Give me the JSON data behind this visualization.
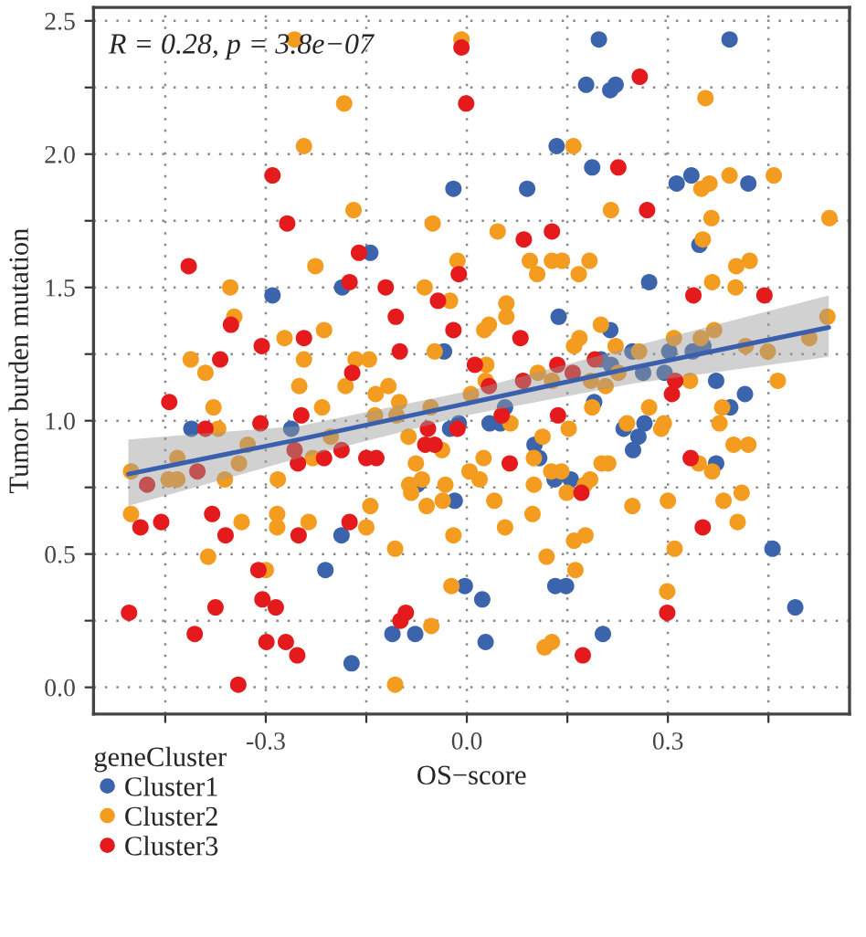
{
  "chart_data": {
    "type": "scatter",
    "xlabel": "OS−score",
    "ylabel": "Tumor burden mutation",
    "legend_title": "geneCluster",
    "legend": "bottom left",
    "grid": true,
    "annotations": [
      "R = 0.28, p = 3.8e−07"
    ],
    "xlim": [
      -0.557,
      0.571
    ],
    "ylim": [
      -0.1,
      2.55
    ],
    "xticks": [
      {
        "value": -0.45,
        "label": null
      },
      -0.3,
      {
        "value": -0.15,
        "label": null
      },
      {
        "value": 0,
        "label": "0.0"
      },
      {
        "value": 0.15,
        "label": null
      },
      0.3,
      {
        "value": 0.45,
        "label": null
      }
    ],
    "yticks": [
      {
        "value": 0,
        "label": "0.0"
      },
      {
        "value": 0.25,
        "label": null
      },
      0.5,
      {
        "value": 0.75,
        "label": null
      },
      {
        "value": 1,
        "label": "1.0"
      },
      {
        "value": 1.25,
        "label": null
      },
      1.5,
      {
        "value": 1.75,
        "label": null
      },
      {
        "value": 2,
        "label": "2.0"
      },
      {
        "value": 2.25,
        "label": null
      },
      2.5
    ],
    "series": [
      {
        "name": "Cluster1",
        "color": "#3b64ad",
        "marker": "circle",
        "x": [
          -0.29,
          -0.02,
          -0.144,
          -0.186,
          -0.034,
          0.197,
          0.392,
          0.178,
          0.214,
          0.222,
          0.134,
          0.187,
          0.09,
          0.313,
          0.335,
          0.42,
          0.347,
          0.272,
          0.137,
          0.214,
          0.247,
          0.302,
          0.337,
          0.353,
          0.2,
          -0.411,
          -0.262,
          -0.025,
          -0.012,
          -0.074,
          -0.018,
          -0.187,
          -0.211,
          -0.003,
          -0.111,
          -0.077,
          -0.172,
          0.215,
          0.263,
          0.295,
          0.372,
          0.415,
          0.19,
          0.393,
          0.057,
          0.034,
          0.05,
          0.265,
          0.234,
          0.256,
          0.101,
          0.248,
          0.108,
          0.372,
          0.131,
          0.155,
          0.456,
          0.132,
          0.148,
          0.023,
          0.49,
          0.203,
          0.028
        ],
        "values": [
          1.47,
          1.87,
          1.63,
          1.5,
          1.26,
          2.43,
          2.43,
          2.26,
          2.24,
          2.26,
          2.03,
          1.95,
          1.87,
          1.89,
          1.92,
          1.89,
          1.66,
          1.52,
          1.39,
          1.34,
          1.26,
          1.26,
          1.26,
          1.28,
          1.23,
          0.97,
          0.97,
          0.97,
          0.99,
          0.76,
          0.7,
          0.57,
          0.44,
          0.38,
          0.2,
          0.2,
          0.09,
          1.21,
          1.18,
          1.18,
          1.15,
          1.1,
          1.07,
          1.05,
          1.05,
          0.99,
          0.99,
          0.99,
          0.97,
          0.94,
          0.91,
          0.89,
          0.86,
          0.84,
          0.78,
          0.78,
          0.52,
          0.38,
          0.38,
          0.33,
          0.3,
          0.2,
          0.17
        ]
      },
      {
        "name": "Cluster2",
        "color": "#f39c1f",
        "marker": "circle",
        "x": [
          -0.257,
          -0.008,
          -0.183,
          -0.243,
          -0.169,
          -0.051,
          -0.014,
          -0.226,
          -0.353,
          -0.063,
          -0.025,
          -0.347,
          -0.213,
          -0.272,
          -0.412,
          -0.243,
          -0.166,
          -0.146,
          -0.048,
          0.356,
          0.159,
          0.35,
          0.362,
          0.392,
          0.458,
          0.215,
          0.365,
          0.541,
          0.046,
          0.352,
          0.094,
          0.127,
          0.142,
          0.183,
          0.105,
          0.167,
          0.402,
          0.422,
          0.366,
          0.401,
          0.059,
          0.059,
          0.033,
          0.026,
          0.2,
          0.538,
          0.168,
          0.16,
          0.222,
          0.309,
          0.349,
          0.369,
          0.511,
          0.257,
          0.416,
          0.449,
          0.029,
          -0.39,
          -0.25,
          -0.181,
          -0.136,
          -0.117,
          -0.101,
          -0.378,
          -0.216,
          -0.137,
          -0.105,
          -0.054,
          -0.371,
          -0.087,
          -0.203,
          -0.327,
          -0.432,
          -0.037,
          -0.23,
          -0.34,
          -0.076,
          -0.501,
          -0.445,
          -0.432,
          -0.361,
          -0.282,
          -0.067,
          0.004,
          -0.086,
          -0.032,
          -0.083,
          -0.144,
          -0.06,
          -0.036,
          -0.501,
          -0.336,
          -0.283,
          -0.283,
          -0.236,
          -0.15,
          -0.02,
          -0.107,
          -0.386,
          -0.3,
          -0.023,
          -0.053,
          -0.107,
          0.028,
          0.106,
          0.127,
          0.185,
          0.207,
          0.226,
          0.333,
          0.464,
          0.006,
          0.187,
          0.272,
          0.381,
          0.065,
          0.239,
          0.294,
          0.29,
          0.377,
          0.152,
          0.113,
          0.398,
          0.42,
          0.025,
          0.1,
          0.201,
          0.211,
          0.346,
          0.019,
          0.126,
          0.141,
          0.366,
          0.184,
          0.1,
          0.176,
          0.149,
          0.41,
          0.041,
          0.3,
          0.383,
          0.247,
          0.098,
          0.404,
          0.057,
          0.177,
          0.16,
          0.31,
          0.119,
          0.162,
          0.299,
          0.127,
          0.116
        ],
        "values": [
          2.43,
          2.43,
          2.19,
          2.03,
          1.79,
          1.74,
          1.6,
          1.58,
          1.5,
          1.5,
          1.45,
          1.39,
          1.34,
          1.31,
          1.23,
          1.23,
          1.23,
          1.23,
          1.26,
          2.21,
          2.03,
          1.87,
          1.89,
          1.92,
          1.92,
          1.79,
          1.76,
          1.76,
          1.71,
          1.68,
          1.6,
          1.6,
          1.6,
          1.6,
          1.55,
          1.55,
          1.58,
          1.6,
          1.52,
          1.5,
          1.44,
          1.39,
          1.36,
          1.34,
          1.36,
          1.39,
          1.31,
          1.28,
          1.28,
          1.31,
          1.31,
          1.34,
          1.31,
          1.26,
          1.28,
          1.26,
          1.21,
          1.18,
          1.13,
          1.13,
          1.1,
          1.13,
          1.07,
          1.05,
          1.05,
          1.02,
          1.02,
          1.05,
          0.97,
          0.94,
          0.94,
          0.91,
          0.86,
          0.89,
          0.86,
          0.84,
          0.84,
          0.81,
          0.78,
          0.78,
          0.78,
          0.78,
          0.78,
          0.81,
          0.76,
          0.76,
          0.73,
          0.68,
          0.68,
          0.7,
          0.65,
          0.62,
          0.65,
          0.6,
          0.62,
          0.6,
          0.57,
          0.52,
          0.49,
          0.44,
          0.38,
          0.23,
          0.01,
          1.15,
          1.18,
          1.15,
          1.15,
          1.13,
          1.18,
          1.15,
          1.15,
          1.1,
          1.05,
          1.05,
          1.05,
          0.99,
          0.99,
          0.99,
          0.97,
          0.99,
          0.97,
          0.94,
          0.91,
          0.91,
          0.86,
          0.86,
          0.84,
          0.84,
          0.84,
          0.78,
          0.81,
          0.81,
          0.81,
          0.78,
          0.76,
          0.76,
          0.73,
          0.73,
          0.7,
          0.7,
          0.7,
          0.68,
          0.65,
          0.62,
          0.6,
          0.57,
          0.55,
          0.52,
          0.49,
          0.44,
          0.36,
          0.17,
          0.15
        ]
      },
      {
        "name": "Cluster3",
        "color": "#e41a1c",
        "marker": "circle",
        "x": [
          -0.008,
          -0.001,
          -0.29,
          -0.268,
          -0.161,
          -0.415,
          -0.012,
          -0.175,
          -0.121,
          -0.043,
          -0.352,
          -0.106,
          -0.02,
          -0.243,
          -0.306,
          -0.368,
          -0.1,
          0.258,
          0.226,
          0.269,
          0.085,
          0.127,
          0.338,
          0.444,
          0.08,
          0.191,
          0.135,
          0.012,
          -0.171,
          -0.444,
          -0.247,
          -0.308,
          -0.39,
          -0.058,
          -0.014,
          -0.257,
          -0.187,
          -0.062,
          -0.048,
          -0.213,
          -0.15,
          -0.135,
          -0.252,
          -0.402,
          -0.477,
          -0.487,
          -0.456,
          -0.38,
          -0.36,
          -0.251,
          -0.175,
          -0.311,
          -0.305,
          -0.285,
          -0.375,
          -0.504,
          -0.091,
          -0.099,
          -0.406,
          -0.299,
          -0.27,
          -0.253,
          -0.341,
          0.033,
          0.084,
          0.158,
          0.311,
          0.306,
          0.052,
          0.136,
          0.334,
          0.064,
          0.171,
          0.352,
          0.299,
          0.173
        ],
        "values": [
          2.4,
          2.19,
          1.92,
          1.74,
          1.63,
          1.58,
          1.55,
          1.52,
          1.5,
          1.45,
          1.36,
          1.39,
          1.34,
          1.31,
          1.28,
          1.23,
          1.26,
          2.29,
          1.95,
          1.79,
          1.68,
          1.71,
          1.47,
          1.47,
          1.31,
          1.23,
          1.21,
          1.21,
          1.18,
          1.07,
          1.02,
          0.99,
          0.97,
          0.97,
          0.97,
          0.89,
          0.89,
          0.91,
          0.91,
          0.86,
          0.86,
          0.86,
          0.84,
          0.81,
          0.76,
          0.6,
          0.62,
          0.65,
          0.57,
          0.57,
          0.62,
          0.44,
          0.33,
          0.3,
          0.3,
          0.28,
          0.28,
          0.25,
          0.2,
          0.17,
          0.17,
          0.12,
          0.01,
          1.13,
          1.15,
          1.18,
          1.15,
          1.1,
          1.02,
          1.02,
          0.86,
          0.84,
          0.73,
          0.6,
          0.28,
          0.12
        ]
      },
      {
        "type": "line",
        "color": "#3a5fad",
        "marker": "none",
        "x": [
          -0.505,
          -0.25,
          0.0,
          0.25,
          0.54
        ],
        "values": [
          0.8,
          0.93,
          1.065,
          1.2,
          1.35
        ],
        "lower": [
          0.68,
          0.86,
          1.02,
          1.14,
          1.24
        ],
        "upper": [
          0.93,
          0.98,
          1.11,
          1.28,
          1.47
        ]
      }
    ]
  }
}
